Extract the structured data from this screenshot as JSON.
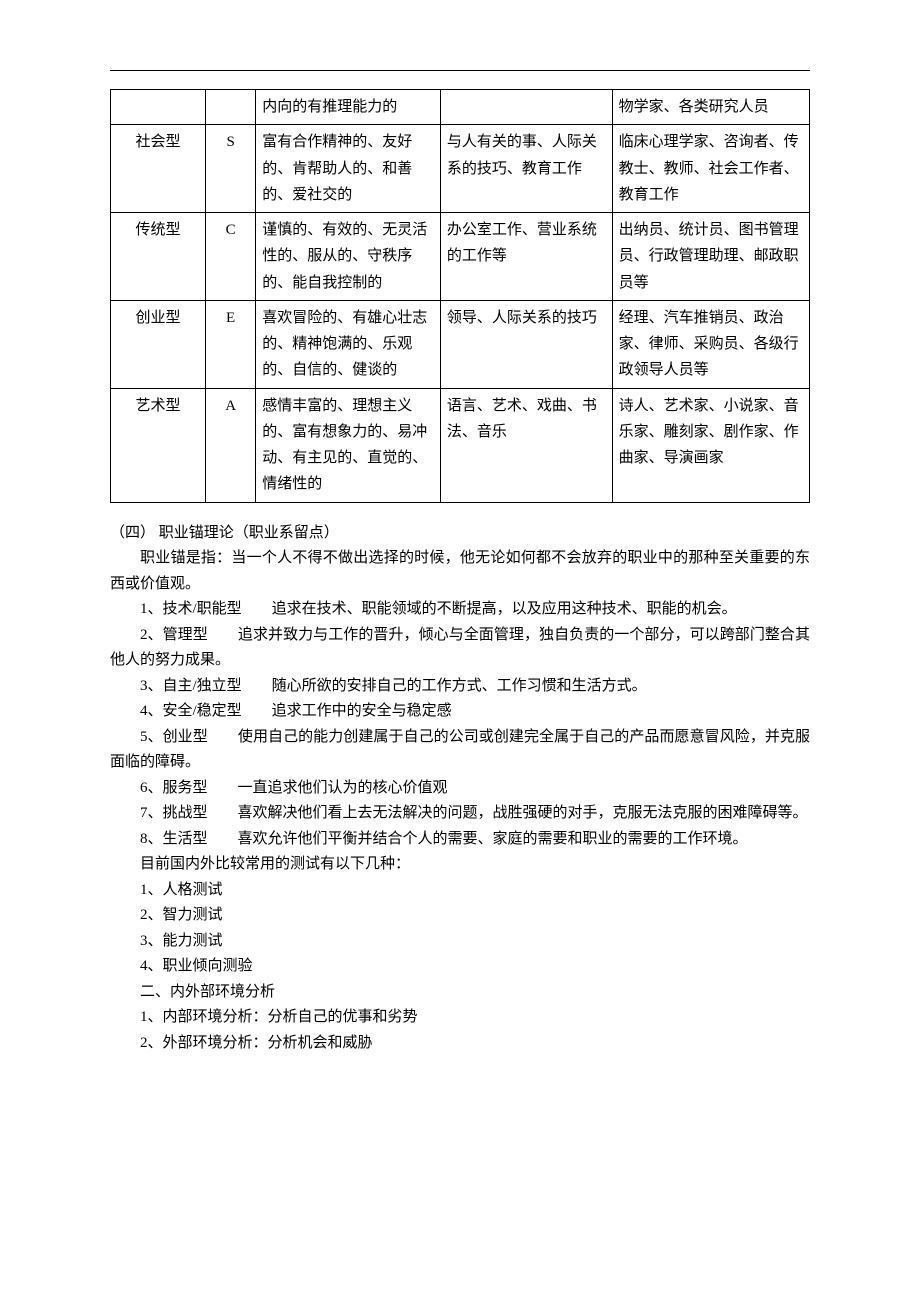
{
  "table": {
    "rows": [
      {
        "type": "",
        "code": "",
        "trait": "内向的有推理能力的",
        "skill": "",
        "occ": "物学家、各类研究人员"
      },
      {
        "type": "社会型",
        "code": "S",
        "trait": "富有合作精神的、友好的、肯帮助人的、和善的、爱社交的",
        "skill": "与人有关的事、人际关系的技巧、教育工作",
        "occ": "临床心理学家、咨询者、传教士、教师、社会工作者、教育工作"
      },
      {
        "type": "传统型",
        "code": "C",
        "trait": "谨慎的、有效的、无灵活性的、服从的、守秩序的、能自我控制的",
        "skill": "办公室工作、营业系统的工作等",
        "occ": "出纳员、统计员、图书管理员、行政管理助理、邮政职员等"
      },
      {
        "type": "创业型",
        "code": "E",
        "trait": "喜欢冒险的、有雄心壮志的、精神饱满的、乐观的、自信的、健谈的",
        "skill": "领导、人际关系的技巧",
        "occ": "经理、汽车推销员、政治家、律师、采购员、各级行政领导人员等"
      },
      {
        "type": "艺术型",
        "code": "A",
        "trait": "感情丰富的、理想主义的、富有想象力的、易冲动、有主见的、直觉的、情绪性的",
        "skill": "语言、艺术、戏曲、书法、音乐",
        "occ": "诗人、艺术家、小说家、音乐家、雕刻家、剧作家、作曲家、导演画家"
      }
    ]
  },
  "section4": {
    "heading": "（四） 职业锚理论（职业系留点）",
    "intro": "职业锚是指：当一个人不得不做出选择的时候，他无论如何都不会放弃的职业中的那种至关重要的东西或价值观。",
    "items": [
      "1、技术/职能型　　追求在技术、职能领域的不断提高，以及应用这种技术、职能的机会。",
      "2、管理型　　追求并致力与工作的晋升，倾心与全面管理，独自负责的一个部分，可以跨部门整合其他人的努力成果。",
      "3、自主/独立型　　随心所欲的安排自己的工作方式、工作习惯和生活方式。",
      "4、安全/稳定型　　追求工作中的安全与稳定感",
      "5、创业型　　使用自己的能力创建属于自己的公司或创建完全属于自己的产品而愿意冒风险，并克服面临的障碍。",
      "6、服务型　　一直追求他们认为的核心价值观",
      "7、挑战型　　喜欢解决他们看上去无法解决的问题，战胜强硬的对手，克服无法克服的困难障碍等。",
      "8、生活型　　喜欢允许他们平衡并结合个人的需要、家庭的需要和职业的需要的工作环境。"
    ],
    "tests_intro": "目前国内外比较常用的测试有以下几种：",
    "tests": [
      "1、人格测试",
      "2、智力测试",
      "3、能力测试",
      "4、职业倾向测验"
    ],
    "env_heading": "二、内外部环境分析",
    "env": [
      "1、内部环境分析：分析自己的优事和劣势",
      "2、外部环境分析：分析机会和威胁"
    ]
  }
}
